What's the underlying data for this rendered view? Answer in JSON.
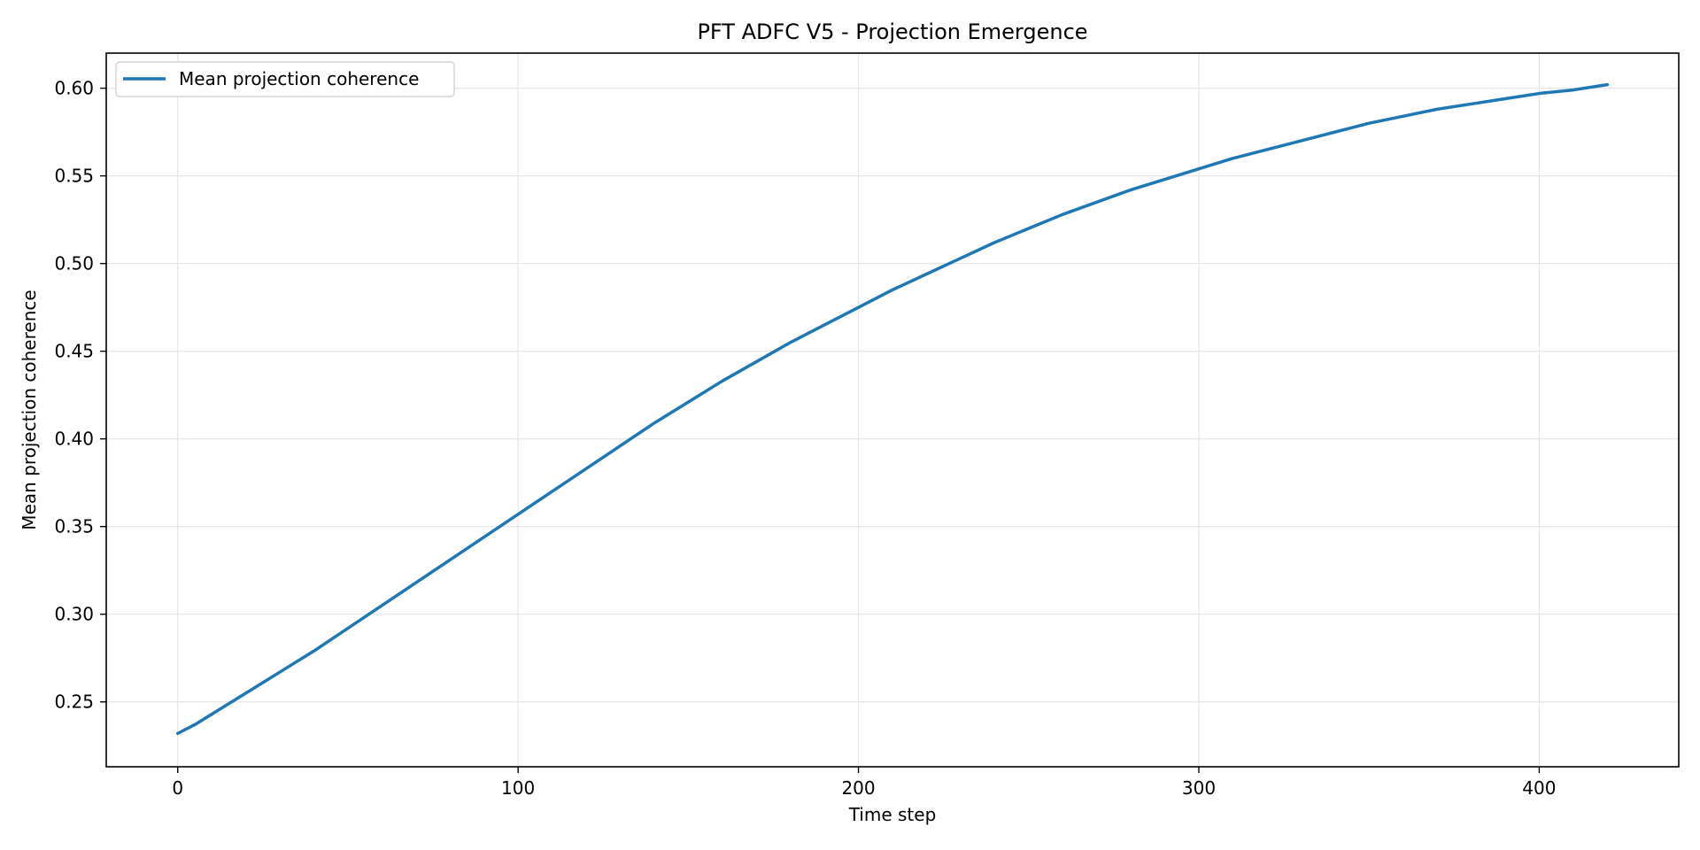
{
  "chart_data": {
    "type": "line",
    "title": "PFT ADFC V5 - Projection Emergence",
    "xlabel": "Time step",
    "ylabel": "Mean projection coherence",
    "xlim": [
      -21,
      441
    ],
    "ylim": [
      0.213,
      0.62
    ],
    "xticks": [
      0,
      100,
      200,
      300,
      400
    ],
    "yticks": [
      0.25,
      0.3,
      0.35,
      0.4,
      0.45,
      0.5,
      0.55,
      0.6
    ],
    "ytick_labels": [
      "0.25",
      "0.30",
      "0.35",
      "0.40",
      "0.45",
      "0.50",
      "0.55",
      "0.60"
    ],
    "grid": true,
    "legend_position": "top-left",
    "series": [
      {
        "name": "Mean projection coherence",
        "color": "#1f77b4",
        "x": [
          0,
          5,
          10,
          20,
          30,
          40,
          50,
          60,
          70,
          80,
          90,
          100,
          110,
          120,
          130,
          140,
          150,
          160,
          170,
          180,
          190,
          200,
          210,
          220,
          230,
          240,
          250,
          260,
          270,
          280,
          290,
          300,
          310,
          320,
          330,
          340,
          350,
          360,
          370,
          380,
          390,
          400,
          410,
          420
        ],
        "y": [
          0.232,
          0.237,
          0.243,
          0.255,
          0.267,
          0.279,
          0.292,
          0.305,
          0.318,
          0.331,
          0.344,
          0.357,
          0.37,
          0.383,
          0.396,
          0.409,
          0.421,
          0.433,
          0.444,
          0.455,
          0.465,
          0.475,
          0.485,
          0.494,
          0.503,
          0.512,
          0.52,
          0.528,
          0.535,
          0.542,
          0.548,
          0.554,
          0.56,
          0.565,
          0.57,
          0.575,
          0.58,
          0.584,
          0.588,
          0.591,
          0.594,
          0.597,
          0.599,
          0.602
        ]
      }
    ]
  }
}
